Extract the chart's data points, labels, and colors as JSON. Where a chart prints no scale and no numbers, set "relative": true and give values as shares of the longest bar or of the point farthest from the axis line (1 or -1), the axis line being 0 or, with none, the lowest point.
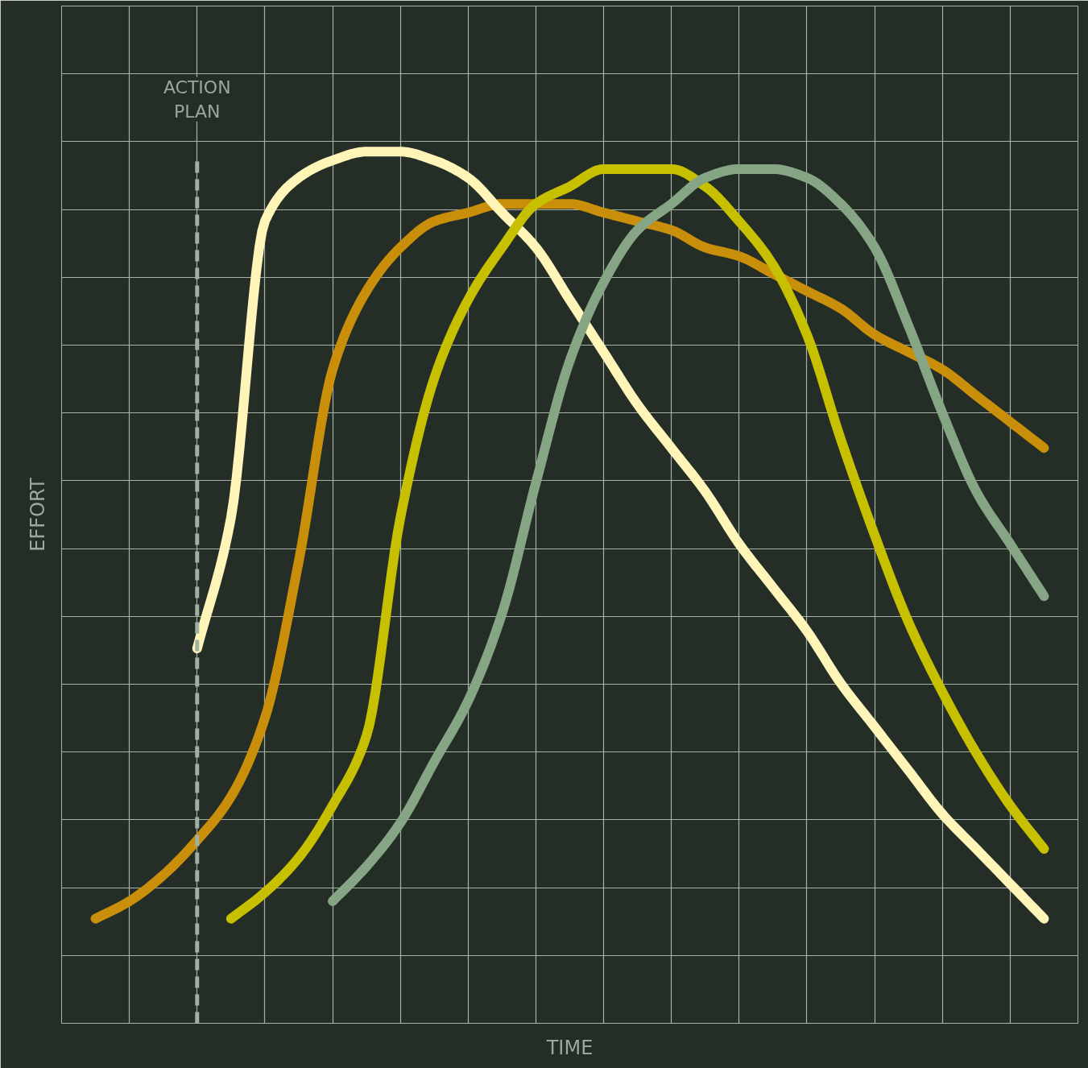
{
  "chart_data": {
    "type": "line",
    "relative": true,
    "xlabel": "TIME",
    "ylabel": "EFFORT",
    "grid": true,
    "line_style": "solid",
    "annotations": [
      "ACTION\nPLAN"
    ],
    "categories": [
      null,
      null,
      null,
      null,
      null,
      null,
      null,
      null,
      null,
      null,
      null,
      null,
      null,
      null,
      null,
      null,
      null,
      null,
      null,
      null,
      null,
      null,
      null,
      null,
      null,
      null,
      null,
      null,
      null,
      null,
      null
    ],
    "series": [
      {
        "color": "#c98f0a",
        "values": [
          null,
          0.12,
          0.14,
          0.17,
          0.21,
          0.26,
          0.35,
          0.53,
          0.75,
          0.84,
          0.89,
          0.92,
          0.93,
          0.94,
          0.94,
          0.94,
          0.93,
          0.92,
          0.91,
          0.89,
          0.88,
          0.86,
          0.84,
          0.82,
          0.79,
          0.77,
          0.75,
          0.72,
          0.69,
          0.66,
          null
        ]
      },
      {
        "color": "#fff5b8",
        "values": [
          null,
          null,
          null,
          null,
          0.43,
          0.58,
          0.92,
          0.97,
          0.99,
          1,
          1,
          0.99,
          0.97,
          0.93,
          0.89,
          0.83,
          0.77,
          0.71,
          0.66,
          0.61,
          0.55,
          0.5,
          0.45,
          0.39,
          0.34,
          0.29,
          0.24,
          0.2,
          0.16,
          0.12,
          null
        ]
      },
      {
        "color": "#c6c000",
        "values": [
          null,
          null,
          null,
          null,
          null,
          0.12,
          0.15,
          0.19,
          0.25,
          0.33,
          0.58,
          0.74,
          0.83,
          0.89,
          0.94,
          0.96,
          0.98,
          0.98,
          0.98,
          0.96,
          0.92,
          0.87,
          0.79,
          0.67,
          0.56,
          0.46,
          0.38,
          0.31,
          0.25,
          0.2,
          null
        ]
      },
      {
        "color": "#86a585",
        "values": [
          null,
          null,
          null,
          null,
          null,
          null,
          null,
          null,
          0.14,
          0.18,
          0.23,
          0.3,
          0.37,
          0.47,
          0.62,
          0.76,
          0.85,
          0.91,
          0.94,
          0.97,
          0.98,
          0.98,
          0.97,
          0.94,
          0.89,
          0.8,
          0.7,
          0.61,
          0.55,
          0.49,
          null
        ]
      }
    ]
  }
}
